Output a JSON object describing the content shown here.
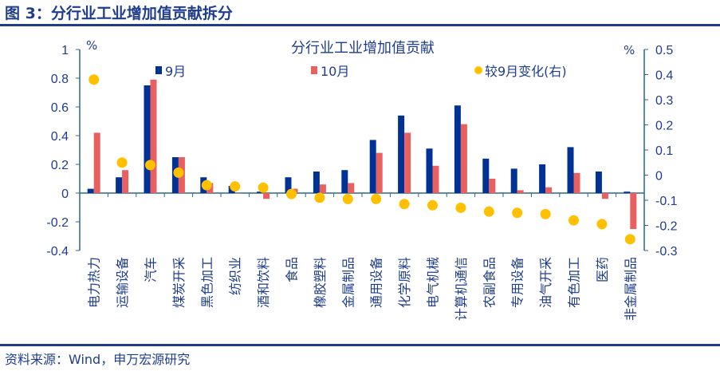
{
  "figure_title": "图 3：分行业工业增加值贡献拆分",
  "source": "资料来源：Wind，申万宏源研究",
  "chart_data": {
    "type": "bar",
    "title": "分行业工业增加值贡献",
    "ylabel": "%",
    "y2label": "%",
    "ylim": [
      -0.4,
      1
    ],
    "yticks": [
      -0.4,
      -0.2,
      0,
      0.2,
      0.4,
      0.6,
      0.8,
      1
    ],
    "y2lim": [
      -0.3,
      0.5
    ],
    "y2ticks": [
      -0.3,
      -0.2,
      -0.1,
      0,
      0.1,
      0.2,
      0.3,
      0.4,
      0.5
    ],
    "legend": "top",
    "categories": [
      "电力热力",
      "运输设备",
      "汽车",
      "煤炭开采",
      "黑色加工",
      "纺织业",
      "酒和饮料",
      "食品",
      "橡胶塑料",
      "金属制品",
      "通用设备",
      "化学原料",
      "电气机械",
      "计算机通信",
      "农副食品",
      "专用设备",
      "油气开采",
      "有色加工",
      "医药",
      "非金属制品"
    ],
    "series": [
      {
        "name": "9月",
        "type": "bar",
        "axis": "left",
        "color": "#003296",
        "values": [
          0.03,
          0.11,
          0.75,
          0.25,
          0.11,
          0.05,
          0.01,
          0.11,
          0.15,
          0.16,
          0.37,
          0.54,
          0.31,
          0.61,
          0.24,
          0.17,
          0.2,
          0.32,
          0.15,
          0.01
        ]
      },
      {
        "name": "10月",
        "type": "bar",
        "axis": "left",
        "color": "#e86060",
        "values": [
          0.42,
          0.16,
          0.79,
          0.25,
          0.07,
          0.0,
          -0.04,
          0.03,
          0.06,
          0.07,
          0.28,
          0.42,
          0.19,
          0.48,
          0.1,
          0.02,
          0.04,
          0.14,
          -0.04,
          -0.25
        ]
      },
      {
        "name": "较9月变化(右)",
        "type": "scatter",
        "axis": "right",
        "color": "#ffc000",
        "values": [
          0.38,
          0.05,
          0.04,
          0.01,
          -0.04,
          -0.045,
          -0.05,
          -0.075,
          -0.09,
          -0.095,
          -0.095,
          -0.115,
          -0.12,
          -0.13,
          -0.145,
          -0.15,
          -0.155,
          -0.18,
          -0.195,
          -0.255
        ]
      }
    ]
  }
}
